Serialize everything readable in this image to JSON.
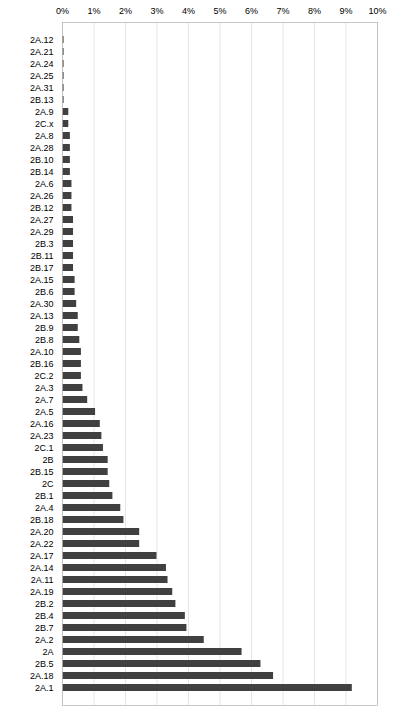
{
  "chart_data": {
    "type": "bar",
    "orientation": "horizontal",
    "categories": [
      "2A.12",
      "2A.21",
      "2A.24",
      "2A.25",
      "2A.31",
      "2B.13",
      "2A.9",
      "2C.x",
      "2A.8",
      "2A.28",
      "2B.10",
      "2B.14",
      "2A.6",
      "2A.26",
      "2B.12",
      "2A.27",
      "2A.29",
      "2B.3",
      "2B.11",
      "2B.17",
      "2A.15",
      "2B.6",
      "2A.30",
      "2A.13",
      "2B.9",
      "2B.8",
      "2A.10",
      "2B.16",
      "2C.2",
      "2A.3",
      "2A.7",
      "2A.5",
      "2A.16",
      "2A.23",
      "2C.1",
      "2B",
      "2B.15",
      "2C",
      "2B.1",
      "2A.4",
      "2B.18",
      "2A.20",
      "2A.22",
      "2A.17",
      "2A.14",
      "2A.11",
      "2A.19",
      "2B.2",
      "2B.4",
      "2B.7",
      "2A.2",
      "2A",
      "2B.5",
      "2A.18",
      "2A.1"
    ],
    "values": [
      0.05,
      0.05,
      0.05,
      0.05,
      0.05,
      0.05,
      0.2,
      0.2,
      0.25,
      0.25,
      0.25,
      0.25,
      0.3,
      0.3,
      0.3,
      0.35,
      0.35,
      0.35,
      0.35,
      0.35,
      0.4,
      0.4,
      0.45,
      0.5,
      0.5,
      0.55,
      0.6,
      0.6,
      0.6,
      0.65,
      0.8,
      1.05,
      1.2,
      1.25,
      1.3,
      1.45,
      1.45,
      1.5,
      1.6,
      1.85,
      1.95,
      2.45,
      2.45,
      3.0,
      3.3,
      3.35,
      3.5,
      3.6,
      3.9,
      3.95,
      4.5,
      5.7,
      6.3,
      6.7,
      9.2
    ],
    "color": "#404040",
    "xlim": [
      0,
      10
    ],
    "xticks": [
      {
        "value": 0,
        "label": "0%"
      },
      {
        "value": 1,
        "label": "1%"
      },
      {
        "value": 2,
        "label": "2%"
      },
      {
        "value": 3,
        "label": "3%"
      },
      {
        "value": 4,
        "label": "4%"
      },
      {
        "value": 5,
        "label": "5%"
      },
      {
        "value": 6,
        "label": "6%"
      },
      {
        "value": 7,
        "label": "7%"
      },
      {
        "value": 8,
        "label": "8%"
      },
      {
        "value": 9,
        "label": "9%"
      },
      {
        "value": 10,
        "label": "10%"
      }
    ],
    "grid": true
  }
}
